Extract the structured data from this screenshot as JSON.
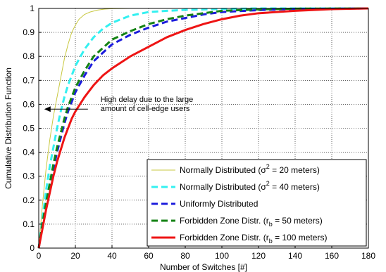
{
  "chart_data": {
    "type": "line",
    "title": "",
    "xlabel": "Number of Switches [#]",
    "ylabel": "Cumulative Distribution Function",
    "xlim": [
      0,
      180
    ],
    "ylim": [
      0,
      1
    ],
    "x_ticks": [
      "0",
      "20",
      "40",
      "60",
      "80",
      "100",
      "120",
      "140",
      "160",
      "180"
    ],
    "y_ticks": [
      "0",
      "0.1",
      "0.2",
      "0.3",
      "0.4",
      "0.5",
      "0.6",
      "0.7",
      "0.8",
      "0.9",
      "1"
    ],
    "grid": true,
    "legend_position": "bottom-right",
    "annotation": {
      "lines": [
        "High delay due to the large",
        "amount of cell-edge users"
      ],
      "arrow_to": {
        "x": 3,
        "y": 0.58
      }
    },
    "series": [
      {
        "legend_main": "Normally Distributed (σ",
        "legend_sup": "2",
        "legend_sub": "",
        "legend_tail": " = 20 meters)",
        "color": "#c8c840",
        "style": "solid-thin",
        "x": [
          0,
          2,
          4,
          6,
          8,
          10,
          12,
          14,
          16,
          18,
          20,
          22,
          25,
          28,
          32,
          36,
          40,
          50,
          60,
          180
        ],
        "y": [
          0.0,
          0.18,
          0.33,
          0.45,
          0.55,
          0.63,
          0.71,
          0.79,
          0.85,
          0.9,
          0.93,
          0.955,
          0.975,
          0.985,
          0.993,
          0.997,
          0.999,
          1.0,
          1.0,
          1.0
        ]
      },
      {
        "legend_main": "Normally Distributed (σ",
        "legend_sup": "2",
        "legend_sub": "",
        "legend_tail": " = 40 meters)",
        "color": "#33f0f0",
        "style": "dash",
        "x": [
          0,
          2,
          4,
          6,
          8,
          10,
          12,
          14,
          16,
          18,
          20,
          25,
          30,
          35,
          40,
          50,
          60,
          70,
          80,
          100,
          120,
          180
        ],
        "y": [
          0.0,
          0.12,
          0.24,
          0.34,
          0.42,
          0.5,
          0.57,
          0.63,
          0.68,
          0.72,
          0.76,
          0.83,
          0.88,
          0.915,
          0.94,
          0.97,
          0.985,
          0.99,
          0.994,
          0.998,
          1.0,
          1.0
        ]
      },
      {
        "legend_main": "Uniformly Distributed",
        "legend_sup": "",
        "legend_sub": "",
        "legend_tail": "",
        "color": "#1c1cdc",
        "style": "dash",
        "x": [
          0,
          2,
          4,
          6,
          8,
          10,
          12,
          14,
          16,
          18,
          20,
          25,
          30,
          40,
          50,
          60,
          70,
          80,
          90,
          100,
          120,
          140,
          180
        ],
        "y": [
          0.0,
          0.09,
          0.18,
          0.26,
          0.33,
          0.4,
          0.46,
          0.52,
          0.57,
          0.61,
          0.65,
          0.72,
          0.78,
          0.85,
          0.89,
          0.92,
          0.945,
          0.96,
          0.975,
          0.985,
          0.993,
          0.998,
          1.0
        ]
      },
      {
        "legend_main": "Forbidden Zone Distr. (r",
        "legend_sup": "",
        "legend_sub": "b",
        "legend_tail": " = 50 meters)",
        "color": "#148214",
        "style": "dash",
        "x": [
          0,
          2,
          4,
          6,
          8,
          10,
          12,
          14,
          16,
          18,
          20,
          25,
          30,
          40,
          50,
          60,
          70,
          80,
          90,
          100,
          120,
          140,
          180
        ],
        "y": [
          0.0,
          0.1,
          0.19,
          0.27,
          0.35,
          0.42,
          0.48,
          0.54,
          0.59,
          0.63,
          0.67,
          0.74,
          0.8,
          0.87,
          0.905,
          0.935,
          0.955,
          0.97,
          0.98,
          0.99,
          0.996,
          0.999,
          1.0
        ]
      },
      {
        "legend_main": "Forbidden Zone Distr. (r",
        "legend_sup": "",
        "legend_sub": "b",
        "legend_tail": " = 100 meters)",
        "color": "#ee1414",
        "style": "solid-thick",
        "x": [
          0,
          2,
          4,
          6,
          8,
          10,
          12,
          14,
          16,
          18,
          20,
          25,
          30,
          35,
          40,
          50,
          60,
          70,
          80,
          90,
          100,
          110,
          120,
          140,
          160,
          180
        ],
        "y": [
          0.0,
          0.08,
          0.16,
          0.23,
          0.3,
          0.36,
          0.41,
          0.46,
          0.5,
          0.54,
          0.57,
          0.63,
          0.68,
          0.72,
          0.75,
          0.8,
          0.84,
          0.88,
          0.91,
          0.935,
          0.955,
          0.97,
          0.98,
          0.99,
          0.997,
          1.0
        ]
      }
    ]
  }
}
